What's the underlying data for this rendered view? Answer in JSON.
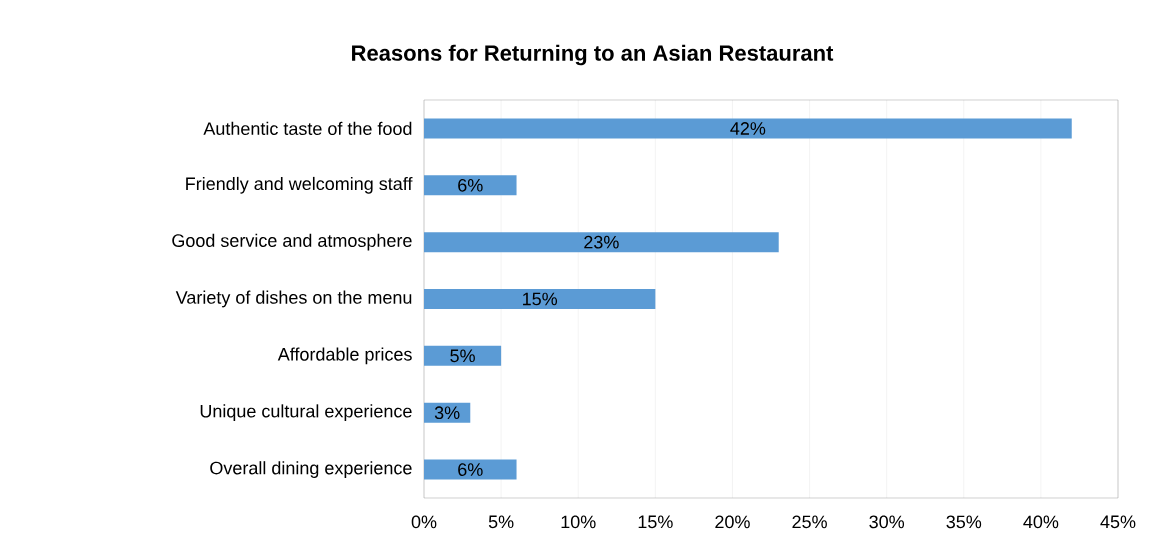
{
  "chart_data": {
    "type": "bar",
    "orientation": "horizontal",
    "title": "Reasons for Returning to an Asian Restaurant",
    "categories": [
      "Authentic taste of the food",
      "Friendly and welcoming staff",
      "Good service and atmosphere",
      "Variety of dishes on the menu",
      "Affordable prices",
      "Unique cultural experience",
      "Overall dining experience"
    ],
    "values": [
      42,
      6,
      23,
      15,
      5,
      3,
      6
    ],
    "value_labels": [
      "42%",
      "6%",
      "23%",
      "15%",
      "5%",
      "3%",
      "6%"
    ],
    "color": "#5b9bd5",
    "xlim": [
      0,
      45
    ],
    "xticks": [
      {
        "value": 0,
        "label": "0%"
      },
      {
        "value": 5,
        "label": "5%"
      },
      {
        "value": 10,
        "label": "10%"
      },
      {
        "value": 15,
        "label": "15%"
      },
      {
        "value": 20,
        "label": "20%"
      },
      {
        "value": 25,
        "label": "25%"
      },
      {
        "value": 30,
        "label": "30%"
      },
      {
        "value": 35,
        "label": "35%"
      },
      {
        "value": 40,
        "label": "40%"
      },
      {
        "value": 45,
        "label": "45%"
      }
    ],
    "grid": "x"
  }
}
